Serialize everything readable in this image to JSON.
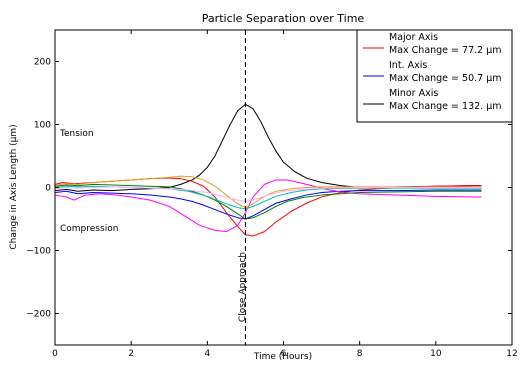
{
  "chart_data": {
    "type": "line",
    "title": "Particle Separation over Time",
    "xlabel": "Time (Hours)",
    "ylabel": "Change in Axis Length (μm)",
    "xlim": [
      0,
      12
    ],
    "ylim": [
      -250,
      250
    ],
    "x_ticks": [
      0,
      2,
      4,
      6,
      8,
      10,
      12
    ],
    "y_ticks": [
      -200,
      -100,
      0,
      100,
      200
    ],
    "x_tick_labels": [
      "0",
      "2",
      "4",
      "6",
      "8",
      "10",
      "12"
    ],
    "y_tick_labels": [
      "−200",
      "−100",
      "0",
      "100",
      "200"
    ],
    "grid": false,
    "legend_position": "top-right",
    "legend": [
      {
        "line1": "Major Axis",
        "line2": "Max Change = 77.2 μm",
        "color": "#ff0000"
      },
      {
        "line1": "Int. Axis",
        "line2": "Max Change = 50.7 μm",
        "color": "#0000ff"
      },
      {
        "line1": "Minor Axis",
        "line2": "Max Change = 132. μm",
        "color": "#000000"
      }
    ],
    "annotations": [
      {
        "text": "Tension",
        "x": 0.15,
        "y": 80
      },
      {
        "text": "Compression",
        "x": 0.15,
        "y": -80
      },
      {
        "text": "Close Approach",
        "x": 4.95,
        "y": -110,
        "rotated": true
      }
    ],
    "vline": {
      "x": 5.0,
      "style": "dashed"
    },
    "series": [
      {
        "color": "#000000",
        "x": [
          0,
          0.3,
          0.6,
          1,
          1.5,
          2,
          2.5,
          3,
          3.3,
          3.6,
          3.8,
          4,
          4.2,
          4.4,
          4.6,
          4.8,
          5,
          5.2,
          5.4,
          5.6,
          5.8,
          6,
          6.3,
          6.6,
          7,
          7.5,
          8,
          8.5,
          9,
          10,
          11,
          11.2
        ],
        "y": [
          -5,
          -3,
          -6,
          -4,
          -5,
          -3,
          -2,
          0,
          5,
          12,
          20,
          32,
          50,
          75,
          100,
          122,
          132,
          125,
          105,
          80,
          58,
          40,
          25,
          15,
          8,
          3,
          0,
          0,
          1,
          2,
          3,
          3
        ]
      },
      {
        "color": "#ff0000",
        "x": [
          0,
          0.2,
          0.5,
          1,
          1.5,
          2,
          2.5,
          3,
          3.3,
          3.6,
          3.9,
          4.2,
          4.5,
          4.8,
          5,
          5.2,
          5.5,
          5.8,
          6.2,
          6.6,
          7,
          7.5,
          8,
          9,
          10,
          11,
          11.2
        ],
        "y": [
          5,
          8,
          6,
          8,
          10,
          12,
          14,
          15,
          14,
          10,
          2,
          -15,
          -40,
          -62,
          -75,
          -77,
          -70,
          -55,
          -38,
          -25,
          -15,
          -8,
          -4,
          0,
          2,
          3,
          3
        ]
      },
      {
        "color": "#0000ff",
        "x": [
          0,
          0.3,
          0.6,
          1,
          1.5,
          2,
          2.5,
          3,
          3.3,
          3.6,
          3.9,
          4.2,
          4.5,
          4.8,
          5,
          5.2,
          5.5,
          5.8,
          6.2,
          6.6,
          7,
          7.5,
          8,
          9,
          10,
          11,
          11.2
        ],
        "y": [
          -8,
          -6,
          -10,
          -8,
          -9,
          -10,
          -12,
          -15,
          -18,
          -22,
          -28,
          -35,
          -42,
          -48,
          -50,
          -45,
          -35,
          -25,
          -18,
          -12,
          -8,
          -6,
          -5,
          -5,
          -4,
          -4,
          -4
        ]
      },
      {
        "color": "#ff00ff",
        "x": [
          0,
          0.3,
          0.5,
          0.8,
          1.2,
          1.6,
          2,
          2.5,
          3,
          3.4,
          3.8,
          4.2,
          4.5,
          4.8,
          5,
          5.2,
          5.5,
          5.8,
          6.1,
          6.4,
          6.8,
          7.2,
          7.6,
          8,
          9,
          10,
          11,
          11.2
        ],
        "y": [
          -12,
          -15,
          -20,
          -12,
          -10,
          -12,
          -15,
          -20,
          -30,
          -45,
          -60,
          -68,
          -70,
          -60,
          -40,
          -15,
          5,
          12,
          12,
          8,
          2,
          -4,
          -8,
          -10,
          -12,
          -14,
          -15,
          -15
        ]
      },
      {
        "color": "#008000",
        "x": [
          0,
          0.3,
          0.6,
          1,
          1.5,
          2,
          2.5,
          3,
          3.3,
          3.6,
          3.9,
          4.2,
          4.5,
          4.8,
          5,
          5.2,
          5.5,
          5.8,
          6.1,
          6.5,
          7,
          7.5,
          8,
          9,
          10,
          11,
          11.2
        ],
        "y": [
          2,
          4,
          3,
          5,
          4,
          3,
          2,
          1,
          -2,
          -6,
          -12,
          -20,
          -30,
          -42,
          -50,
          -48,
          -40,
          -30,
          -22,
          -16,
          -12,
          -10,
          -8,
          -7,
          -6,
          -6,
          -6
        ]
      },
      {
        "color": "#00bfbf",
        "x": [
          0,
          0.3,
          0.6,
          1,
          1.5,
          2,
          2.5,
          3,
          3.5,
          4,
          4.5,
          4.8,
          5,
          5.2,
          5.5,
          5.8,
          6.2,
          6.6,
          7,
          8,
          9,
          10,
          11,
          11.2
        ],
        "y": [
          0,
          2,
          1,
          2,
          1,
          0,
          -1,
          -2,
          -6,
          -14,
          -26,
          -32,
          -34,
          -30,
          -22,
          -14,
          -8,
          -4,
          -2,
          -1,
          -1,
          -1,
          -1,
          -1
        ]
      },
      {
        "color": "#e0a020",
        "x": [
          0,
          0.3,
          0.6,
          1,
          1.5,
          2,
          2.5,
          3,
          3.3,
          3.6,
          3.9,
          4.2,
          4.5,
          4.8,
          5,
          5.2,
          5.5,
          5.8,
          6.2,
          6.6,
          7,
          8,
          9,
          10,
          11,
          11.2
        ],
        "y": [
          4,
          6,
          5,
          8,
          10,
          12,
          14,
          16,
          18,
          17,
          12,
          2,
          -12,
          -26,
          -32,
          -26,
          -14,
          -6,
          -2,
          0,
          1,
          1,
          1,
          1,
          1,
          1
        ]
      },
      {
        "color": "#ffaaff",
        "x": [
          0,
          0.3,
          0.6,
          1,
          1.5,
          2,
          2.5,
          3,
          3.5,
          4,
          4.4,
          4.8,
          5,
          5.3,
          5.6,
          6,
          6.5,
          7,
          8,
          9,
          10,
          11,
          11.2
        ],
        "y": [
          -2,
          0,
          -1,
          0,
          1,
          0,
          -1,
          -2,
          -4,
          -8,
          -14,
          -20,
          -22,
          -18,
          -12,
          -6,
          -3,
          -1,
          0,
          0,
          0,
          0,
          0
        ]
      }
    ]
  }
}
